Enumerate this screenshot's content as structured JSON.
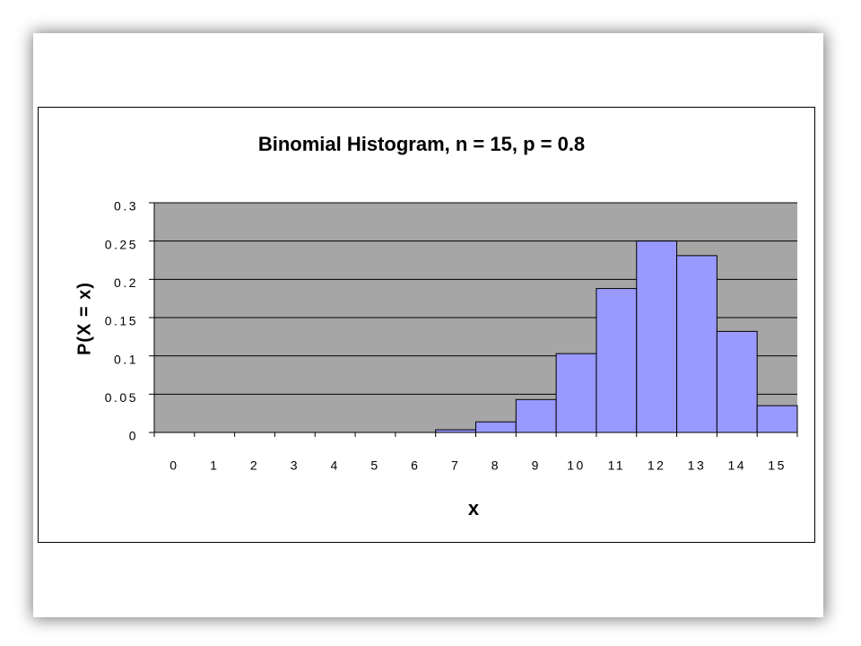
{
  "chart_data": {
    "type": "bar",
    "title": "Binomial Histogram, n = 15, p = 0.8",
    "x_label": "x",
    "y_label": "P(X = x)",
    "categories": [
      "0",
      "1",
      "2",
      "3",
      "4",
      "5",
      "6",
      "7",
      "8",
      "9",
      "10",
      "11",
      "12",
      "13",
      "14",
      "15"
    ],
    "values": [
      0,
      0,
      0,
      0,
      0,
      0,
      0,
      0.0035,
      0.0138,
      0.043,
      0.103,
      0.188,
      0.25,
      0.231,
      0.132,
      0.035
    ],
    "color": "#9999ff",
    "ylim": [
      0,
      0.3
    ],
    "yticks": [
      0,
      0.05,
      0.1,
      0.15,
      0.2,
      0.25,
      0.3
    ],
    "grid": true
  }
}
